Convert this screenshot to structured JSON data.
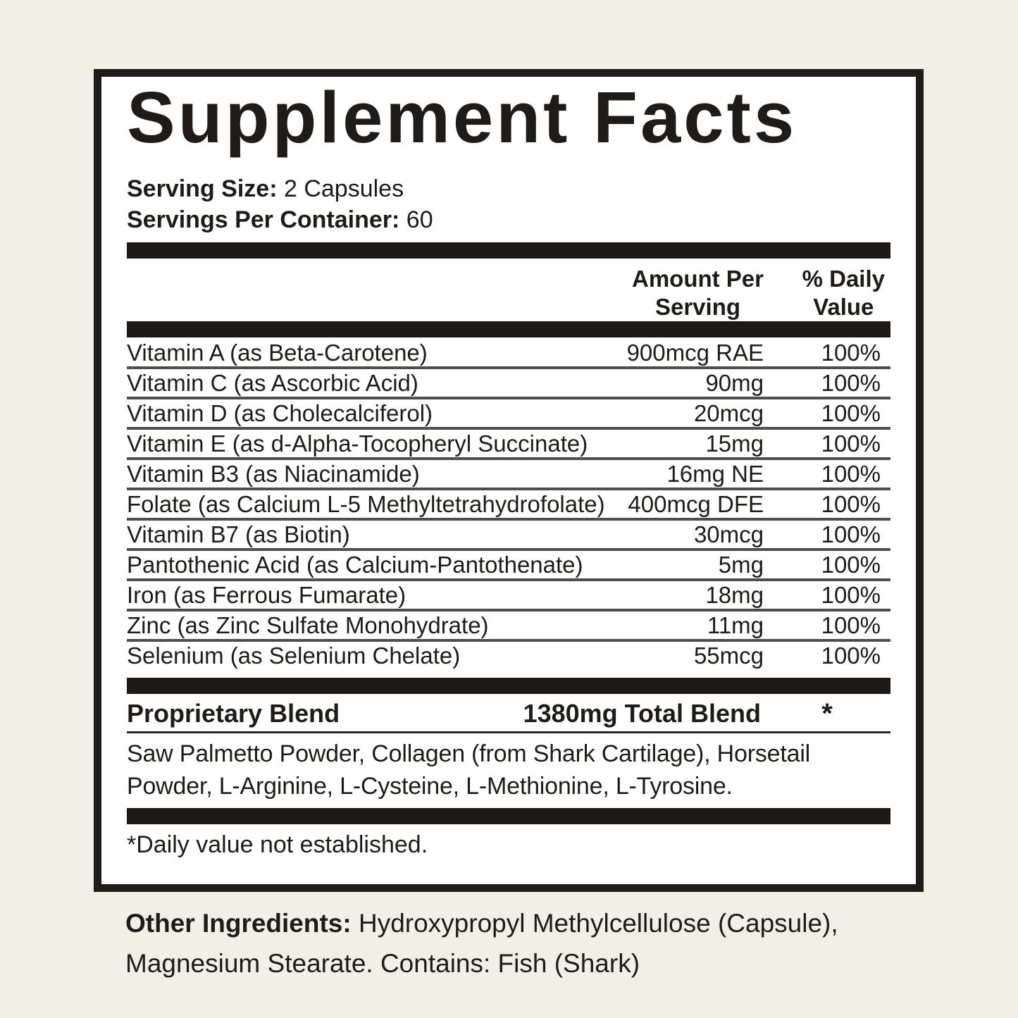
{
  "label": {
    "title": "Supplement Facts",
    "serving_size_label": "Serving Size:",
    "serving_size_value": "2 Capsules",
    "servings_per_container_label": "Servings Per Container:",
    "servings_per_container_value": "60",
    "header": {
      "amount_line1": "Amount Per",
      "amount_line2": "Serving",
      "dv_line1": "% Daily",
      "dv_line2": "Value"
    },
    "rows": [
      {
        "name": "Vitamin A (as Beta-Carotene)",
        "amount": "900mcg RAE",
        "dv": "100%"
      },
      {
        "name": "Vitamin C (as Ascorbic Acid)",
        "amount": "90mg",
        "dv": "100%"
      },
      {
        "name": "Vitamin D (as Cholecalciferol)",
        "amount": "20mcg",
        "dv": "100%"
      },
      {
        "name": "Vitamin E (as d-Alpha-Tocopheryl Succinate)",
        "amount": "15mg",
        "dv": "100%"
      },
      {
        "name": "Vitamin B3 (as Niacinamide)",
        "amount": "16mg NE",
        "dv": "100%"
      },
      {
        "name": "Folate (as Calcium L-5 Methyltetrahydrofolate)",
        "amount": "400mcg DFE",
        "dv": "100%"
      },
      {
        "name": "Vitamin B7 (as Biotin)",
        "amount": "30mcg",
        "dv": "100%"
      },
      {
        "name": "Pantothenic Acid (as Calcium-Pantothenate)",
        "amount": "5mg",
        "dv": "100%"
      },
      {
        "name": "Iron (as Ferrous Fumarate)",
        "amount": "18mg",
        "dv": "100%"
      },
      {
        "name": "Zinc (as Zinc Sulfate Monohydrate)",
        "amount": "11mg",
        "dv": "100%"
      },
      {
        "name": "Selenium (as Selenium Chelate)",
        "amount": "55mcg",
        "dv": "100%"
      }
    ],
    "blend": {
      "name": "Proprietary Blend",
      "amount": "1380mg Total Blend",
      "dv": "*",
      "ingredients": "Saw Palmetto Powder, Collagen (from Shark Cartilage), Horsetail Powder, L-Arginine, L-Cysteine, L-Methionine, L-Tyrosine."
    },
    "footnote": "*Daily value not established.",
    "other_ingredients_label": "Other Ingredients:",
    "other_ingredients_value": "Hydroxypropyl Methylcellulose (Capsule), Magnesium Stearate. Contains: Fish (Shark)"
  },
  "colors": {
    "background": "#f2efe7",
    "panel": "#ffffff",
    "ink": "#1e1b19",
    "bar": "#1b1815",
    "divider": "#4e4e4e"
  }
}
